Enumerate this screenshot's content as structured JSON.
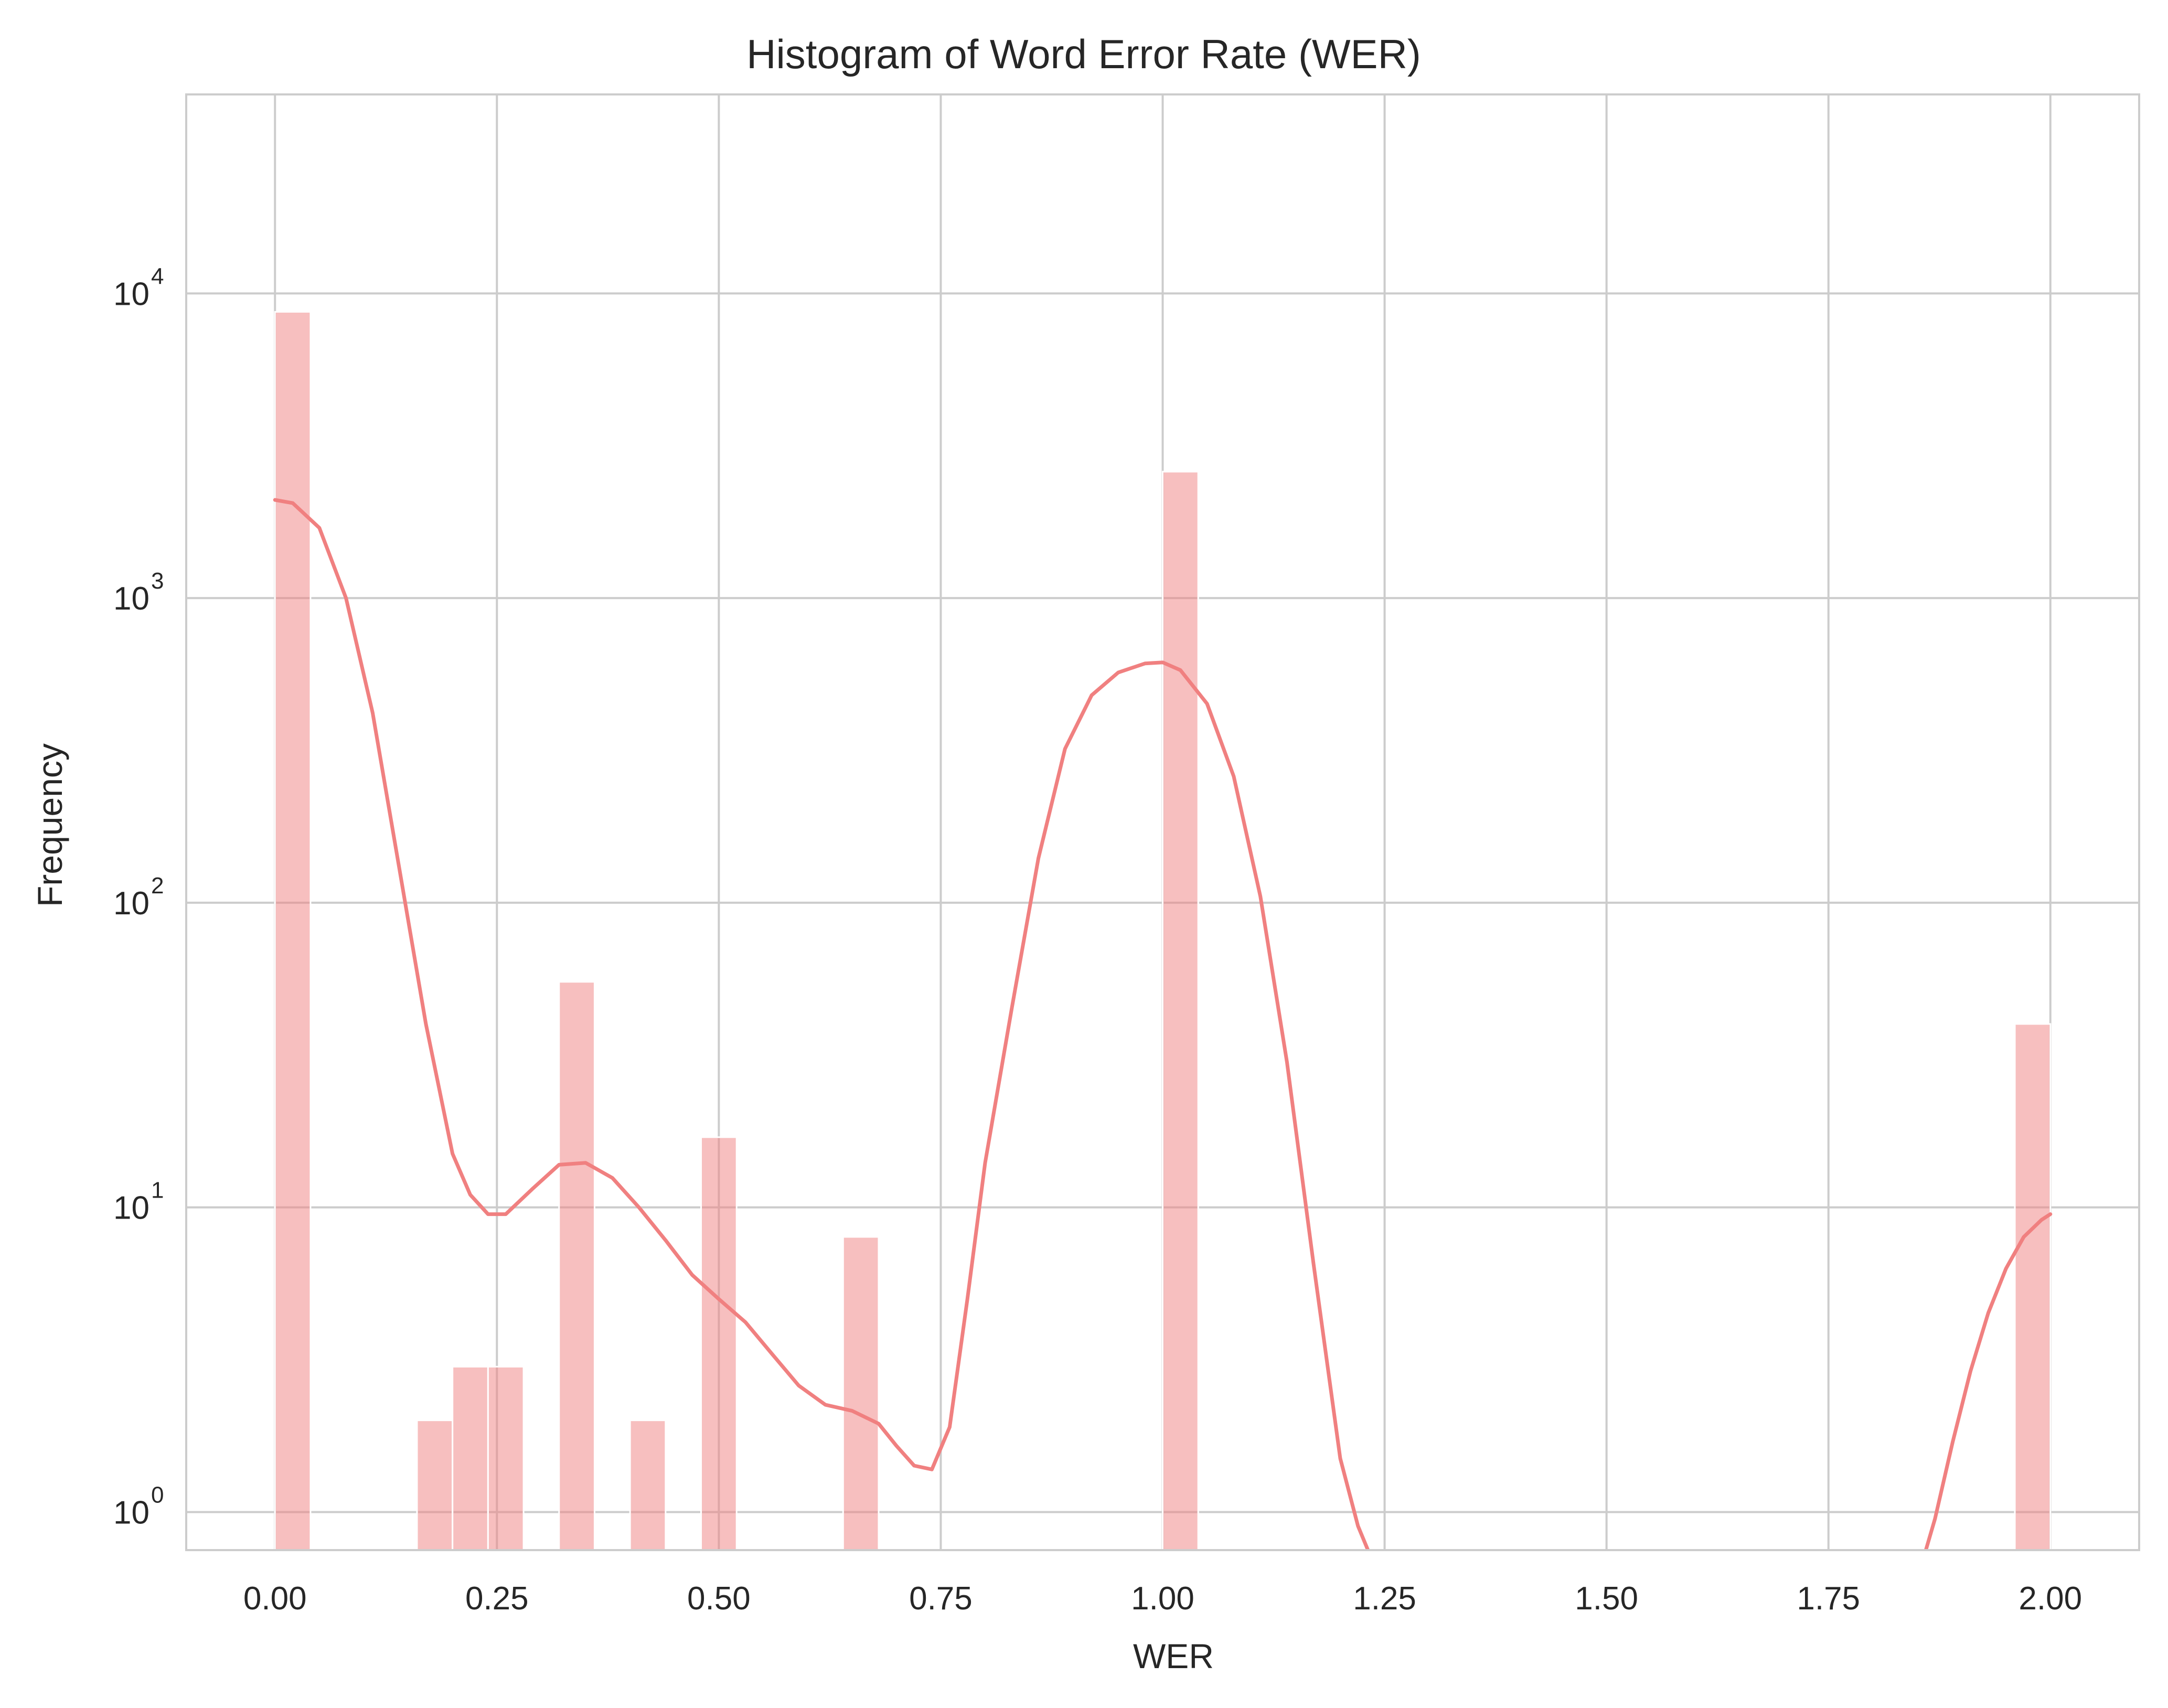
{
  "chart_data": {
    "type": "bar",
    "title": "Histogram of Word Error Rate (WER)",
    "xlabel": "WER",
    "ylabel": "Frequency",
    "xlim": [
      -0.1,
      2.1
    ],
    "ylim": [
      0.75,
      45000
    ],
    "y_scale": "log",
    "grid": true,
    "color": "#f08080",
    "x_ticks": [
      "0.00",
      "0.25",
      "0.50",
      "0.75",
      "1.00",
      "1.25",
      "1.50",
      "1.75",
      "2.00"
    ],
    "x_tick_values": [
      0,
      0.25,
      0.5,
      0.75,
      1.0,
      1.25,
      1.5,
      1.75,
      2.0
    ],
    "y_ticks": [
      {
        "value": 1,
        "base": "10",
        "exp": "0"
      },
      {
        "value": 10,
        "base": "10",
        "exp": "1"
      },
      {
        "value": 100,
        "base": "10",
        "exp": "2"
      },
      {
        "value": 1000,
        "base": "10",
        "exp": "3"
      },
      {
        "value": 10000,
        "base": "10",
        "exp": "4"
      }
    ],
    "bin_width": 0.04,
    "bins": [
      {
        "x0": 0.0,
        "x1": 0.04,
        "count": 8700
      },
      {
        "x0": 0.16,
        "x1": 0.2,
        "count": 2
      },
      {
        "x0": 0.2,
        "x1": 0.24,
        "count": 3
      },
      {
        "x0": 0.24,
        "x1": 0.28,
        "count": 3
      },
      {
        "x0": 0.32,
        "x1": 0.36,
        "count": 55
      },
      {
        "x0": 0.4,
        "x1": 0.44,
        "count": 2
      },
      {
        "x0": 0.48,
        "x1": 0.52,
        "count": 17
      },
      {
        "x0": 0.64,
        "x1": 0.68,
        "count": 8
      },
      {
        "x0": 1.0,
        "x1": 1.04,
        "count": 2600
      },
      {
        "x0": 1.96,
        "x1": 2.0,
        "count": 40
      }
    ],
    "kde": [
      [
        0.0,
        2100
      ],
      [
        0.02,
        2050
      ],
      [
        0.05,
        1700
      ],
      [
        0.08,
        1000
      ],
      [
        0.11,
        420
      ],
      [
        0.14,
        130
      ],
      [
        0.17,
        40
      ],
      [
        0.2,
        15
      ],
      [
        0.22,
        11
      ],
      [
        0.24,
        9.5
      ],
      [
        0.26,
        9.5
      ],
      [
        0.29,
        11.5
      ],
      [
        0.32,
        13.8
      ],
      [
        0.35,
        14
      ],
      [
        0.38,
        12.5
      ],
      [
        0.41,
        10
      ],
      [
        0.44,
        7.8
      ],
      [
        0.47,
        6
      ],
      [
        0.5,
        5
      ],
      [
        0.53,
        4.2
      ],
      [
        0.56,
        3.3
      ],
      [
        0.59,
        2.6
      ],
      [
        0.62,
        2.25
      ],
      [
        0.65,
        2.15
      ],
      [
        0.68,
        1.95
      ],
      [
        0.7,
        1.65
      ],
      [
        0.72,
        1.42
      ],
      [
        0.74,
        1.38
      ],
      [
        0.76,
        1.9
      ],
      [
        0.78,
        5
      ],
      [
        0.8,
        14
      ],
      [
        0.83,
        45
      ],
      [
        0.86,
        140
      ],
      [
        0.89,
        320
      ],
      [
        0.92,
        480
      ],
      [
        0.95,
        570
      ],
      [
        0.98,
        610
      ],
      [
        1.0,
        615
      ],
      [
        1.02,
        580
      ],
      [
        1.05,
        450
      ],
      [
        1.08,
        260
      ],
      [
        1.11,
        105
      ],
      [
        1.14,
        30
      ],
      [
        1.17,
        6.5
      ],
      [
        1.2,
        1.5
      ],
      [
        1.22,
        0.9
      ],
      [
        1.245,
        0.6
      ]
    ],
    "kde_tail": [
      [
        1.85,
        0.6
      ],
      [
        1.87,
        0.95
      ],
      [
        1.89,
        1.7
      ],
      [
        1.91,
        2.9
      ],
      [
        1.93,
        4.5
      ],
      [
        1.95,
        6.3
      ],
      [
        1.97,
        8.0
      ],
      [
        1.99,
        9.1
      ],
      [
        2.0,
        9.5
      ]
    ]
  }
}
